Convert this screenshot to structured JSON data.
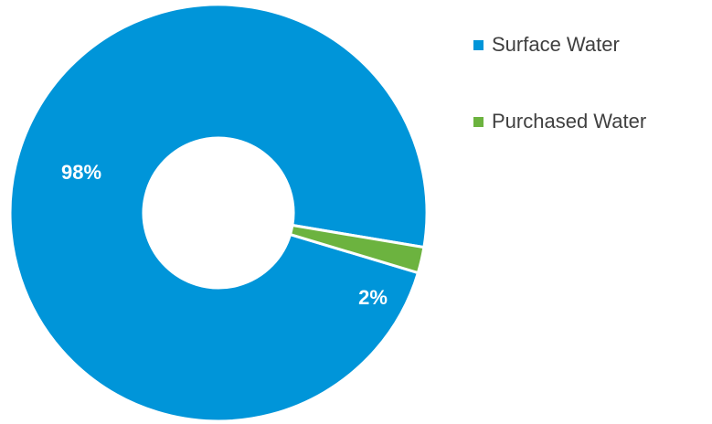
{
  "chart_data": {
    "type": "pie",
    "variant": "donut",
    "title": "",
    "series": [
      {
        "name": "Surface Water",
        "value": 98,
        "label": "98%",
        "color": "#0095D9"
      },
      {
        "name": "Purchased Water",
        "value": 2,
        "label": "2%",
        "color": "#6CB33F"
      }
    ],
    "legend_position": "right"
  }
}
